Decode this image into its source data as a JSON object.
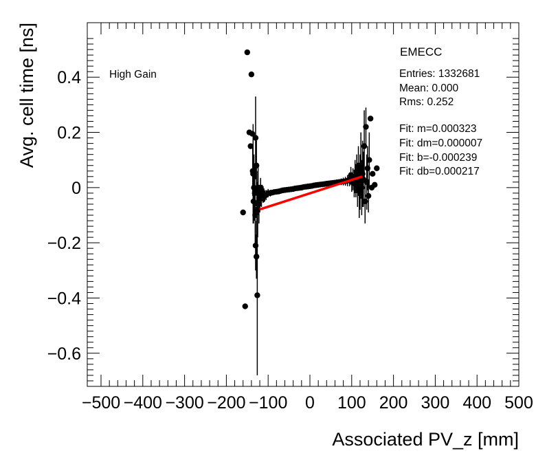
{
  "chart_data": {
    "type": "scatter",
    "xlabel": "Associated PV_z [mm]",
    "ylabel": "Avg. cell time [ns]",
    "xlim": [
      -500,
      500
    ],
    "ylim": [
      -0.72,
      0.55
    ],
    "x_ticks": [
      -500,
      -400,
      -300,
      -200,
      -100,
      0,
      100,
      200,
      300,
      400,
      500
    ],
    "x_tick_labels": [
      "−500",
      "−400",
      "−300",
      "−200",
      "−100",
      "0",
      "100",
      "200",
      "300",
      "400",
      "500"
    ],
    "y_ticks": [
      -0.6,
      -0.4,
      -0.2,
      0,
      0.2,
      0.4
    ],
    "y_tick_labels": [
      "−0.6",
      "−0.4",
      "−0.2",
      "0",
      "0.2",
      "0.4"
    ],
    "annotation": "High Gain",
    "stats": {
      "title": "EMECC",
      "entries": "Entries: 1332681",
      "mean": "Mean: 0.000",
      "rms": "Rms: 0.252",
      "fit_m": "Fit: m=0.000323",
      "fit_dm": "Fit: dm=0.000007",
      "fit_b": "Fit: b=-0.000239",
      "fit_db": "Fit: db=0.000217"
    },
    "fit_line": {
      "x": [
        -120,
        125
      ],
      "slope": 0.000323,
      "intercept": -0.000239,
      "color": "#ff0000"
    },
    "series": [
      {
        "name": "data",
        "x": [
          -150,
          -145,
          -142,
          -140,
          -138,
          -136,
          -134,
          -132,
          -130,
          -128,
          -126,
          -124,
          -122,
          -120,
          -118,
          -116,
          -114,
          -112,
          -110,
          -108,
          -105,
          -100,
          -95,
          -90,
          -85,
          -80,
          -75,
          -70,
          -65,
          -60,
          -55,
          -50,
          -45,
          -40,
          -35,
          -30,
          -25,
          -20,
          -15,
          -10,
          -5,
          0,
          5,
          10,
          15,
          20,
          25,
          30,
          35,
          40,
          45,
          50,
          55,
          60,
          65,
          70,
          75,
          80,
          85,
          90,
          95,
          98,
          100,
          103,
          106,
          108,
          110,
          112,
          114,
          116,
          118,
          120,
          122,
          124,
          126,
          128,
          130,
          132,
          134,
          136,
          138,
          140,
          142,
          145,
          148,
          150,
          155,
          160,
          -160,
          -155,
          -130,
          -127,
          -125,
          -128,
          -131,
          -135,
          -137
        ],
        "y": [
          0.49,
          0.2,
          0.15,
          0.41,
          0.195,
          0.05,
          0.0,
          -0.02,
          -0.21,
          -0.25,
          -0.39,
          -0.01,
          -0.06,
          -0.04,
          -0.015,
          -0.03,
          -0.02,
          -0.025,
          -0.028,
          -0.03,
          -0.027,
          -0.02,
          -0.02,
          -0.018,
          -0.016,
          -0.015,
          -0.014,
          -0.012,
          -0.01,
          -0.009,
          -0.008,
          -0.007,
          -0.006,
          -0.005,
          -0.003,
          -0.002,
          -0.001,
          0.0,
          0.002,
          0.003,
          0.004,
          0.005,
          0.006,
          0.008,
          0.009,
          0.01,
          0.011,
          0.012,
          0.013,
          0.014,
          0.015,
          0.016,
          0.017,
          0.018,
          0.019,
          0.02,
          0.021,
          0.022,
          0.023,
          0.025,
          0.03,
          0.045,
          0.02,
          0.03,
          0.015,
          0.04,
          0.025,
          0.05,
          0.01,
          0.06,
          -0.01,
          0.02,
          0.08,
          0.0,
          0.05,
          0.03,
          0.15,
          -0.05,
          0.22,
          0.02,
          0.07,
          -0.03,
          0.1,
          0.25,
          0.0,
          0.05,
          0.01,
          0.07,
          -0.09,
          -0.43,
          0.18,
          -0.08,
          -0.06,
          0.08,
          -0.1,
          -0.05,
          0.06
        ],
        "yerr": [
          0.0,
          0.0,
          0.0,
          0.0,
          0.0,
          0.18,
          0.12,
          0.1,
          0.09,
          0.08,
          0.29,
          0.09,
          0.07,
          0.05,
          0.05,
          0.04,
          0.03,
          0.03,
          0.025,
          0.02,
          0.018,
          0.015,
          0.012,
          0.01,
          0.009,
          0.008,
          0.007,
          0.006,
          0.005,
          0.005,
          0.004,
          0.004,
          0.004,
          0.004,
          0.003,
          0.003,
          0.003,
          0.003,
          0.003,
          0.003,
          0.003,
          0.003,
          0.003,
          0.003,
          0.003,
          0.003,
          0.004,
          0.004,
          0.004,
          0.005,
          0.005,
          0.006,
          0.007,
          0.008,
          0.009,
          0.01,
          0.012,
          0.014,
          0.016,
          0.02,
          0.025,
          0.03,
          0.035,
          0.04,
          0.05,
          0.06,
          0.06,
          0.07,
          0.08,
          0.09,
          0.1,
          0.1,
          0.12,
          0.1,
          0.12,
          0.1,
          0.13,
          0.08,
          0.07,
          0.1,
          0.08,
          0.06,
          0.1,
          0.0,
          0.0,
          0.0,
          0.0,
          0.0,
          0.0,
          0.0,
          0.15,
          0.1,
          0.12,
          0.09,
          0.1,
          0.08,
          0.09
        ]
      }
    ]
  }
}
